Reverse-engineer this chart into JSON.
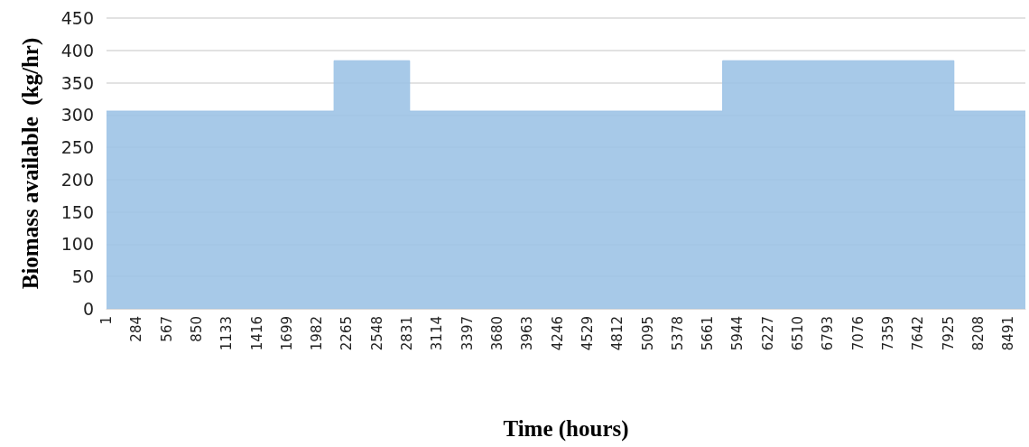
{
  "chart_data": {
    "type": "area",
    "xlabel": "Time (hours)",
    "ylabel": "Biomass available  (kg/hr)",
    "x": [
      1,
      2143,
      2143,
      2854,
      2854,
      5801,
      5801,
      7977,
      7977,
      8650
    ],
    "series": [
      {
        "color": "#9dc3e6",
        "values": [
          306,
          306,
          384,
          384,
          306,
          306,
          384,
          384,
          306,
          306
        ]
      }
    ],
    "xlim": [
      1,
      8650
    ],
    "xticks": [
      1,
      284,
      567,
      850,
      1133,
      1416,
      1699,
      1982,
      2265,
      2548,
      2831,
      3114,
      3397,
      3680,
      3963,
      4246,
      4529,
      4812,
      5095,
      5378,
      5661,
      5944,
      6227,
      6510,
      6793,
      7076,
      7359,
      7642,
      7925,
      8208,
      8491
    ],
    "ylim": [
      0,
      450
    ],
    "yticks": [
      0,
      50,
      100,
      150,
      200,
      250,
      300,
      350,
      400,
      450
    ],
    "grid": "y"
  }
}
